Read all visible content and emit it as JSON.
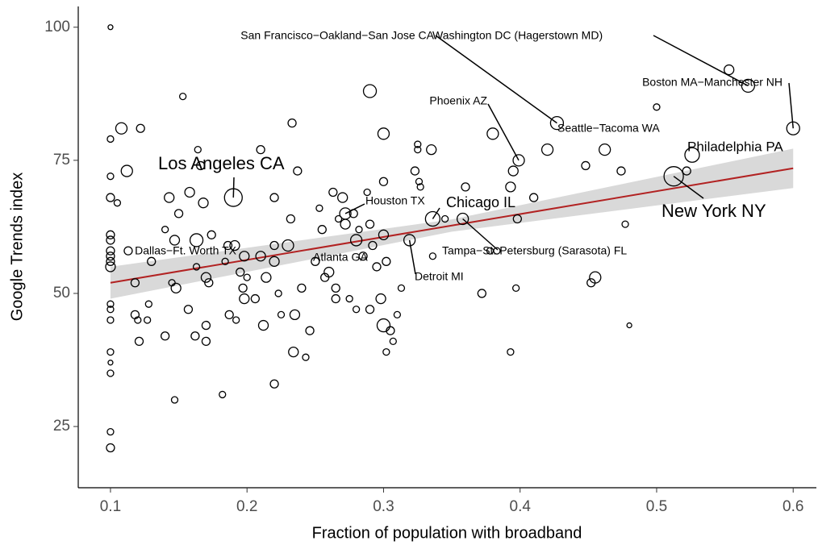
{
  "chart_data": {
    "type": "scatter",
    "x_label": "Fraction of population with broadband",
    "y_label": "Google Trends index",
    "xlim": [
      0.0764,
      0.617
    ],
    "ylim": [
      13.5,
      103.9
    ],
    "xticks": [
      0.1,
      0.2,
      0.3,
      0.4,
      0.5,
      0.6
    ],
    "yticks": [
      25,
      50,
      75,
      100
    ],
    "series": [
      {
        "color": "#000000",
        "x": [
          0.1,
          0.1,
          0.1,
          0.1,
          0.1,
          0.1,
          0.1,
          0.1,
          0.1,
          0.1,
          0.1,
          0.1,
          0.1,
          0.1,
          0.1,
          0.1,
          0.1,
          0.1,
          0.108,
          0.112,
          0.105,
          0.113,
          0.122,
          0.118,
          0.118,
          0.12,
          0.121,
          0.127,
          0.128,
          0.13,
          0.14,
          0.14,
          0.143,
          0.147,
          0.145,
          0.148,
          0.147,
          0.153,
          0.15,
          0.158,
          0.157,
          0.162,
          0.163,
          0.163,
          0.164,
          0.166,
          0.168,
          0.17,
          0.17,
          0.17,
          0.172,
          0.174,
          0.182,
          0.184,
          0.186,
          0.187,
          0.191,
          0.192,
          0.195,
          0.197,
          0.198,
          0.2,
          0.206,
          0.21,
          0.21,
          0.212,
          0.214,
          0.22,
          0.22,
          0.22,
          0.22,
          0.223,
          0.225,
          0.23,
          0.232,
          0.233,
          0.234,
          0.235,
          0.237,
          0.24,
          0.243,
          0.246,
          0.25,
          0.253,
          0.255,
          0.257,
          0.26,
          0.263,
          0.265,
          0.265,
          0.267,
          0.27,
          0.272,
          0.275,
          0.278,
          0.28,
          0.282,
          0.285,
          0.288,
          0.29,
          0.29,
          0.29,
          0.292,
          0.295,
          0.298,
          0.3,
          0.3,
          0.3,
          0.3,
          0.302,
          0.302,
          0.305,
          0.307,
          0.31,
          0.313,
          0.323,
          0.325,
          0.325,
          0.326,
          0.327,
          0.335,
          0.336,
          0.345,
          0.36,
          0.372,
          0.378,
          0.38,
          0.383,
          0.393,
          0.395,
          0.393,
          0.397,
          0.398,
          0.41,
          0.42,
          0.448,
          0.452,
          0.455,
          0.474,
          0.477,
          0.48,
          0.5,
          0.522,
          0.553
        ],
        "values": [
          100,
          79,
          72,
          68,
          61,
          60,
          58,
          57,
          56,
          55,
          48,
          47,
          45,
          39,
          37,
          35,
          24,
          21,
          81,
          73,
          67,
          58,
          81,
          52,
          46,
          45,
          41,
          45,
          48,
          56,
          42,
          62,
          68,
          60,
          52,
          51,
          30,
          87,
          65,
          69,
          47,
          42,
          60,
          55,
          77,
          74,
          67,
          53,
          44,
          41,
          52,
          61,
          31,
          56,
          59,
          46,
          59,
          45,
          54,
          51,
          49,
          53,
          49,
          77,
          57,
          44,
          53,
          68,
          59,
          56,
          33,
          50,
          46,
          59,
          64,
          82,
          39,
          46,
          73,
          51,
          38,
          43,
          56,
          66,
          62,
          53,
          54,
          69,
          51,
          49,
          64,
          68,
          63,
          49,
          65,
          47,
          62,
          57,
          69,
          88,
          63,
          47,
          59,
          55,
          49,
          80,
          71,
          61,
          44,
          56,
          39,
          43,
          41,
          46,
          51,
          73,
          78,
          77,
          71,
          70,
          77,
          57,
          64,
          70,
          50,
          58,
          80,
          58,
          70,
          73,
          39,
          51,
          64,
          68,
          77,
          74,
          52,
          53,
          73,
          63,
          44,
          85,
          73,
          92
        ],
        "size": [
          3,
          4,
          4,
          5,
          5,
          5,
          5,
          5,
          5,
          6,
          4,
          4,
          4,
          4,
          3,
          4,
          4,
          5,
          7,
          7,
          4,
          5,
          5,
          5,
          5,
          4,
          5,
          4,
          4,
          5,
          5,
          4,
          6,
          6,
          4,
          6,
          4,
          4,
          5,
          6,
          5,
          5,
          8,
          4,
          4,
          5,
          6,
          6,
          5,
          5,
          5,
          5,
          4,
          4,
          5,
          5,
          6,
          4,
          5,
          5,
          6,
          4,
          5,
          5,
          6,
          6,
          6,
          5,
          5,
          6,
          5,
          4,
          4,
          7,
          5,
          5,
          6,
          6,
          5,
          5,
          4,
          5,
          5,
          4,
          5,
          5,
          6,
          5,
          5,
          5,
          4,
          6,
          6,
          4,
          5,
          4,
          4,
          5,
          4,
          8,
          5,
          5,
          5,
          5,
          6,
          7,
          5,
          6,
          8,
          5,
          4,
          5,
          4,
          4,
          4,
          5,
          4,
          4,
          4,
          4,
          6,
          4,
          4,
          5,
          5,
          4,
          7,
          4,
          6,
          6,
          4,
          4,
          5,
          5,
          7,
          5,
          5,
          7,
          5,
          4,
          3,
          4,
          5,
          6
        ]
      }
    ],
    "annotations": [
      {
        "text": "San Francisco−Oakland−San Jose CA",
        "x": 0.427,
        "y": 82,
        "size": 8
      },
      {
        "text": "Washington DC (Hagerstown MD)",
        "x": 0.567,
        "y": 89,
        "size": 8
      },
      {
        "text": "Boston MA−Manchester NH",
        "x": 0.6,
        "y": 81,
        "size": 8
      },
      {
        "text": "Phoenix AZ",
        "x": 0.399,
        "y": 75,
        "size": 7
      },
      {
        "text": "Seattle−Tacoma WA",
        "x": 0.462,
        "y": 77,
        "size": 7
      },
      {
        "text": "Philadelphia PA",
        "x": 0.526,
        "y": 76,
        "size": 9
      },
      {
        "text": "New York NY",
        "x": 0.5125,
        "y": 72,
        "size": 12
      },
      {
        "text": "Los Angeles CA",
        "x": 0.19,
        "y": 68,
        "size": 11
      },
      {
        "text": "Houston TX",
        "x": 0.272,
        "y": 65,
        "size": 7
      },
      {
        "text": "Chicago IL",
        "x": 0.336,
        "y": 64,
        "size": 9
      },
      {
        "text": "Dallas−Ft. Worth TX",
        "x": 0.198,
        "y": 57,
        "size": 6
      },
      {
        "text": "Atlanta GA",
        "x": 0.28,
        "y": 60,
        "size": 7
      },
      {
        "text": "Tampa−St. Petersburg (Sarasota) FL",
        "x": 0.358,
        "y": 64,
        "size": 7
      },
      {
        "text": "Detroit MI",
        "x": 0.319,
        "y": 60,
        "size": 7
      }
    ],
    "fit": {
      "color": "#b22222",
      "band_color": "#d9d9d9",
      "x": [
        0.1,
        0.35,
        0.6
      ],
      "y": [
        52,
        62.75,
        73.5
      ],
      "lower": [
        49,
        61.6,
        69.8
      ],
      "upper": [
        55,
        63.9,
        77.2
      ]
    }
  }
}
